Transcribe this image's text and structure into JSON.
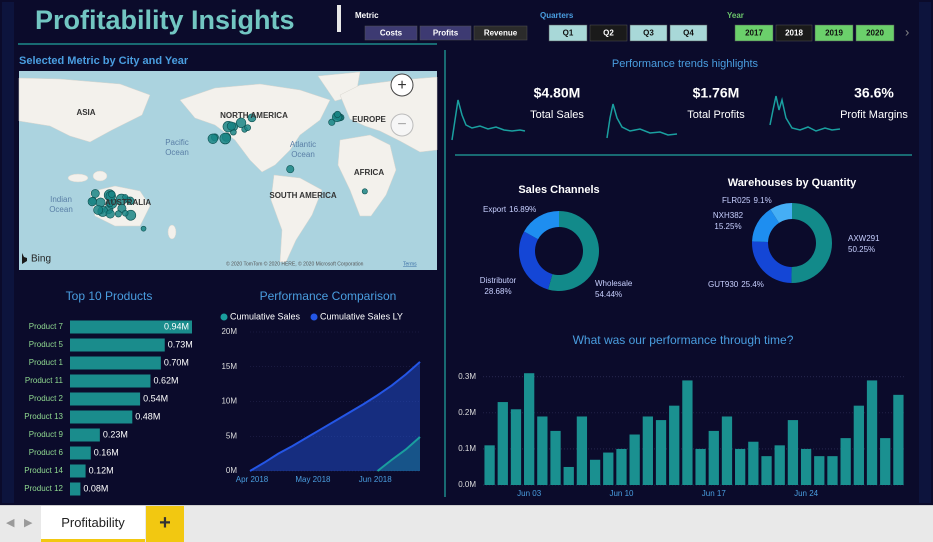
{
  "header": {
    "title": "Profitability Insights"
  },
  "slicers": {
    "metric": {
      "label": "Metric",
      "options": [
        "Costs",
        "Profits",
        "Revenue"
      ],
      "selected": "Revenue"
    },
    "quarters": {
      "label": "Quarters",
      "options": [
        "Q1",
        "Q2",
        "Q3",
        "Q4"
      ],
      "selected": "Q2"
    },
    "year": {
      "label": "Year",
      "options": [
        "2017",
        "2018",
        "2019",
        "2020"
      ],
      "selected": "2018"
    }
  },
  "map": {
    "title": "Selected Metric by City and Year",
    "continents": [
      "ASIA",
      "NORTH AMERICA",
      "EUROPE",
      "AFRICA",
      "SOUTH AMERICA",
      "AUSTRALIA"
    ],
    "oceans": [
      [
        "Pacific",
        "Ocean"
      ],
      [
        "Atlantic",
        "Ocean"
      ],
      [
        "Indian",
        "Ocean"
      ]
    ],
    "provider": "Bing",
    "attribution": "© 2020 TomTom © 2020 HERE, © 2020 Microsoft Corporation",
    "terms": "Terms"
  },
  "kpis": {
    "title": "Performance trends highlights",
    "items": [
      {
        "value": "$4.80M",
        "label": "Total Sales"
      },
      {
        "value": "$1.76M",
        "label": "Total Profits"
      },
      {
        "value": "36.6%",
        "label": "Profit Margins"
      }
    ]
  },
  "sales_channels": {
    "type": "pie",
    "title": "Sales Channels",
    "categories": [
      "Wholesale",
      "Distributor",
      "Export"
    ],
    "values": [
      54.44,
      28.68,
      16.89
    ],
    "value_labels": [
      "54.44%",
      "28.68%",
      "16.89%"
    ],
    "colors": [
      "#128a8a",
      "#1446d6",
      "#1e8ef0"
    ]
  },
  "warehouses": {
    "type": "pie",
    "title": "Warehouses by Quantity",
    "categories": [
      "AXW291",
      "GUT930",
      "NXH382",
      "FLR025"
    ],
    "values": [
      50.25,
      25.4,
      15.25,
      9.1
    ],
    "value_labels": [
      "50.25%",
      "25.4%",
      "15.25%",
      "9.1%"
    ],
    "colors": [
      "#128a8a",
      "#1446d6",
      "#1e8ef0",
      "#45aef5"
    ]
  },
  "top_products": {
    "type": "bar",
    "title": "Top 10 Products",
    "categories": [
      "Product 7",
      "Product 5",
      "Product 1",
      "Product 11",
      "Product 2",
      "Product 13",
      "Product 9",
      "Product 6",
      "Product 14",
      "Product 12"
    ],
    "values": [
      0.94,
      0.73,
      0.7,
      0.62,
      0.54,
      0.48,
      0.23,
      0.16,
      0.12,
      0.08
    ],
    "value_labels": [
      "0.94M",
      "0.73M",
      "0.70M",
      "0.62M",
      "0.54M",
      "0.48M",
      "0.23M",
      "0.16M",
      "0.12M",
      "0.08M"
    ],
    "color": "#1a8c8c"
  },
  "comparison": {
    "type": "line",
    "title": "Performance Comparison",
    "series": [
      {
        "name": "Cumulative Sales",
        "color": "#1a9e9e",
        "values": [
          null,
          null,
          null,
          null,
          null,
          null,
          null,
          null,
          null,
          0,
          1.6,
          3.1,
          4.9
        ]
      },
      {
        "name": "Cumulative Sales LY",
        "color": "#2456e6",
        "values": [
          0,
          1.2,
          2.5,
          3.6,
          4.8,
          6.0,
          7.2,
          8.4,
          9.6,
          10.9,
          12.3,
          13.9,
          15.7
        ]
      }
    ],
    "xlim": [
      0,
      12
    ],
    "xticks": [
      {
        "value": 0,
        "label": "Apr 2018"
      },
      {
        "value": 4.3,
        "label": "May 2018"
      },
      {
        "value": 8.7,
        "label": "Jun 2018"
      }
    ],
    "ylim": [
      0,
      20
    ],
    "yticks": [
      {
        "value": 0,
        "label": "0M"
      },
      {
        "value": 5,
        "label": "5M"
      },
      {
        "value": 10,
        "label": "10M"
      },
      {
        "value": 15,
        "label": "15M"
      },
      {
        "value": 20,
        "label": "20M"
      }
    ]
  },
  "timeline": {
    "type": "bar",
    "title": "What was our performance through time?",
    "categories": [
      null,
      null,
      null,
      "Jun 03",
      null,
      null,
      null,
      null,
      null,
      null,
      "Jun 10",
      null,
      null,
      null,
      null,
      null,
      null,
      "Jun 17",
      null,
      null,
      null,
      null,
      null,
      null,
      "Jun 24",
      null,
      null,
      null,
      null,
      null,
      null,
      null
    ],
    "values": [
      0.11,
      0.23,
      0.21,
      0.31,
      0.19,
      0.15,
      0.05,
      0.19,
      0.07,
      0.09,
      0.1,
      0.14,
      0.19,
      0.18,
      0.22,
      0.29,
      0.1,
      0.15,
      0.19,
      0.1,
      0.12,
      0.08,
      0.11,
      0.18,
      0.1,
      0.08,
      0.08,
      0.13,
      0.22,
      0.29,
      0.13,
      0.25
    ],
    "color": "#1a9090",
    "ylim": [
      0,
      0.33
    ],
    "yticks": [
      {
        "value": 0,
        "label": "0.0M"
      },
      {
        "value": 0.1,
        "label": "0.1M"
      },
      {
        "value": 0.2,
        "label": "0.2M"
      },
      {
        "value": 0.3,
        "label": "0.3M"
      }
    ],
    "grid": true
  },
  "tabs": {
    "pages": [
      "Profitability"
    ],
    "add": "+"
  }
}
